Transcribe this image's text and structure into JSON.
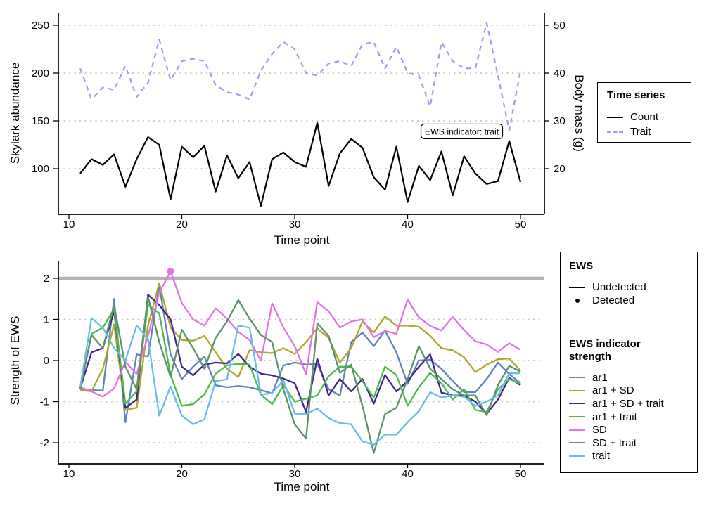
{
  "top_panel": {
    "ylabel": "Skylark abundance",
    "y2label": "Body mass (g)",
    "xlabel": "Time point",
    "legend": {
      "title": "Time series",
      "items": [
        {
          "label": "Count",
          "color": "#000000",
          "dash": "solid"
        },
        {
          "label": "Trait",
          "color": "#9d9df0",
          "dash": "dashed"
        }
      ]
    }
  },
  "bottom_panel": {
    "ylabel": "Strength of EWS",
    "xlabel": "Time point",
    "legend_ews": {
      "title": "EWS",
      "items": [
        {
          "label": "Undetected",
          "key": "line"
        },
        {
          "label": "Detected",
          "key": "point"
        }
      ]
    },
    "legend_strength": {
      "title": "EWS indicator strength",
      "items": [
        {
          "label": "ar1",
          "color": "#5e83bd"
        },
        {
          "label": "ar1 + SD",
          "color": "#b2a52f"
        },
        {
          "label": "ar1 + SD + trait",
          "color": "#45248d"
        },
        {
          "label": "ar1 + trait",
          "color": "#4cba4c"
        },
        {
          "label": "SD",
          "color": "#e473e4"
        },
        {
          "label": "SD + trait",
          "color": "#5e9268"
        },
        {
          "label": "trait",
          "color": "#69bde9"
        }
      ]
    }
  },
  "chart_data": [
    {
      "type": "line",
      "title": "",
      "xlabel": "Time point",
      "ylabel": "Skylark abundance",
      "y2label": "Body mass (g)",
      "x": [
        11,
        12,
        13,
        14,
        15,
        16,
        17,
        18,
        19,
        20,
        21,
        22,
        23,
        24,
        25,
        26,
        27,
        28,
        29,
        30,
        31,
        32,
        33,
        34,
        35,
        36,
        37,
        38,
        39,
        40,
        41,
        42,
        43,
        44,
        45,
        46,
        47,
        48,
        49,
        50
      ],
      "xticks": [
        10,
        20,
        30,
        40,
        50
      ],
      "yticks_left": [
        100,
        150,
        200,
        250
      ],
      "yticks_right": [
        20,
        30,
        40,
        50
      ],
      "xlim": [
        9,
        52
      ],
      "ylim_left": [
        52,
        268
      ],
      "y2_relation": "right_value = left_value / 5",
      "grid": "horizontal-dotted",
      "series": [
        {
          "name": "Count",
          "axis": "left",
          "color": "#000000",
          "dash": "solid",
          "values": [
            95,
            110,
            104,
            115,
            81,
            110,
            133,
            125,
            68,
            123,
            112,
            124,
            76,
            114,
            90,
            107,
            61,
            110,
            117,
            107,
            102,
            148,
            82,
            116,
            131,
            122,
            91,
            78,
            123,
            65,
            103,
            88,
            118,
            72,
            113,
            95,
            84,
            87,
            129,
            86
          ]
        },
        {
          "name": "Trait",
          "axis": "right",
          "color": "#9d9df0",
          "dash": "dashed",
          "values": [
            41,
            34.5,
            37,
            36.5,
            41.5,
            35,
            38,
            47,
            38.5,
            42.5,
            43,
            42.5,
            37.5,
            36,
            35.5,
            34.5,
            40.5,
            44,
            46.5,
            45,
            40,
            39.5,
            42,
            42.5,
            41.5,
            46,
            46.5,
            41,
            45.5,
            40,
            39.5,
            33,
            46.5,
            42.5,
            41,
            41,
            50.5,
            39.5,
            28,
            40.5
          ]
        }
      ],
      "annotation": {
        "text": "EWS indicator: trait",
        "x": 44.8,
        "y_left": 139
      }
    },
    {
      "type": "line",
      "title": "",
      "xlabel": "Time point",
      "ylabel": "Strength of EWS",
      "x": [
        11,
        12,
        13,
        14,
        15,
        16,
        17,
        18,
        19,
        20,
        21,
        22,
        23,
        24,
        25,
        26,
        27,
        28,
        29,
        30,
        31,
        32,
        33,
        34,
        35,
        36,
        37,
        38,
        39,
        40,
        41,
        42,
        43,
        44,
        45,
        46,
        47,
        48,
        49,
        50
      ],
      "xticks": [
        10,
        20,
        30,
        40,
        50
      ],
      "yticks": [
        -2,
        -1,
        0,
        1,
        2
      ],
      "xlim": [
        9,
        52
      ],
      "ylim": [
        -2.5,
        2.5
      ],
      "grid": "horizontal-dotted",
      "threshold_line": {
        "y": 2,
        "color": "#b4b4b4"
      },
      "detected_point": {
        "series": "SD",
        "x": 19,
        "y": 2.17
      },
      "series": [
        {
          "name": "ar1",
          "color": "#5e83bd",
          "values": [
            -0.7,
            -0.72,
            -0.73,
            1.5,
            -1.5,
            0.15,
            0.1,
            1.83,
            0.15,
            -0.45,
            -0.15,
            0.1,
            -0.6,
            -0.65,
            -0.62,
            -0.65,
            -0.72,
            -0.8,
            -0.12,
            -0.05,
            -0.1,
            -0.08,
            -0.7,
            -0.85,
            0.45,
            0.68,
            0.35,
            0.73,
            0.2,
            -0.57,
            0.0,
            0.02,
            -0.2,
            -0.5,
            -0.77,
            -0.77,
            -0.45,
            -0.05,
            -0.33,
            -0.55
          ]
        },
        {
          "name": "ar1 + SD",
          "color": "#b2a52f",
          "values": [
            -0.72,
            -0.75,
            -0.2,
            0.88,
            -1.2,
            -1.15,
            0.85,
            1.88,
            0.8,
            0.5,
            0.48,
            0.6,
            0.2,
            -0.2,
            -0.4,
            0.25,
            0.2,
            0.18,
            0.3,
            0.16,
            0.45,
            0.78,
            0.55,
            -0.05,
            0.3,
            0.95,
            0.68,
            1.07,
            0.85,
            0.85,
            0.82,
            0.6,
            0.3,
            0.25,
            0.08,
            -0.28,
            -0.1,
            0.03,
            0.05,
            -0.25
          ]
        },
        {
          "name": "ar1 + SD + trait",
          "color": "#45248d",
          "values": [
            -0.68,
            0.2,
            0.3,
            1.2,
            -1.15,
            -0.95,
            1.6,
            1.35,
            1.0,
            -0.15,
            -0.36,
            -0.1,
            -0.05,
            -0.07,
            0.16,
            -0.15,
            -0.32,
            -0.36,
            -0.44,
            -0.55,
            -1.25,
            0.05,
            -0.85,
            -0.45,
            -0.75,
            -0.45,
            -1.05,
            -0.35,
            -0.75,
            -0.5,
            -0.15,
            0.15,
            -0.78,
            -0.85,
            -0.85,
            -1.0,
            -1.3,
            -0.95,
            -0.42,
            -0.6
          ]
        },
        {
          "name": "ar1 + trait",
          "color": "#4cba4c",
          "values": [
            -0.7,
            0.65,
            0.8,
            1.25,
            -1.05,
            -0.75,
            1.35,
            1.15,
            -0.35,
            -1.1,
            -1.06,
            -0.82,
            -0.32,
            -0.12,
            -0.08,
            -0.1,
            -0.83,
            -1.06,
            -0.6,
            -1.0,
            -0.93,
            -0.85,
            -0.38,
            -0.15,
            -0.15,
            -0.5,
            -0.9,
            -0.15,
            -0.35,
            -1.1,
            -0.65,
            -0.3,
            -0.55,
            -0.95,
            -0.7,
            -1.2,
            -1.25,
            -0.7,
            -0.45,
            -0.57
          ]
        },
        {
          "name": "SD",
          "color": "#e473e4",
          "values": [
            -0.65,
            -0.75,
            -0.88,
            -0.68,
            -0.03,
            -0.33,
            0.6,
            1.65,
            2.17,
            1.4,
            1.0,
            0.85,
            1.27,
            1.02,
            0.7,
            0.5,
            0.0,
            1.39,
            0.8,
            0.35,
            -0.33,
            1.42,
            1.2,
            0.8,
            0.95,
            1.0,
            0.57,
            0.72,
            0.65,
            1.48,
            1.05,
            0.84,
            0.73,
            1.06,
            0.74,
            0.47,
            0.39,
            0.21,
            0.42,
            0.26
          ]
        },
        {
          "name": "SD + trait",
          "color": "#5e9268",
          "values": [
            -0.68,
            0.62,
            0.3,
            1.35,
            -0.15,
            -0.7,
            1.55,
            0.45,
            -0.4,
            0.75,
            0.3,
            -0.2,
            0.55,
            0.95,
            1.47,
            1.02,
            0.62,
            0.45,
            -0.7,
            -1.55,
            -1.9,
            0.9,
            0.6,
            -0.3,
            -0.1,
            -1.1,
            -2.25,
            -1.3,
            -1.15,
            -0.45,
            0.35,
            -0.2,
            -0.45,
            -0.7,
            -0.85,
            -0.85,
            -1.33,
            -0.6,
            -0.13,
            -0.27
          ]
        },
        {
          "name": "trait",
          "color": "#69bde9",
          "values": [
            -0.65,
            1.03,
            0.8,
            0.3,
            0.0,
            0.85,
            0.53,
            -1.34,
            -0.63,
            -1.34,
            -1.55,
            -1.43,
            -0.5,
            -0.46,
            0.85,
            0.8,
            -0.83,
            -0.79,
            -0.48,
            -1.29,
            -1.3,
            -1.17,
            -1.4,
            -1.52,
            -1.55,
            -1.97,
            -2.05,
            -1.8,
            -1.8,
            -1.5,
            -1.23,
            -0.77,
            -0.9,
            -0.85,
            -0.88,
            -1.1,
            -1.0,
            -0.85,
            -0.31,
            -0.31
          ]
        }
      ]
    }
  ]
}
